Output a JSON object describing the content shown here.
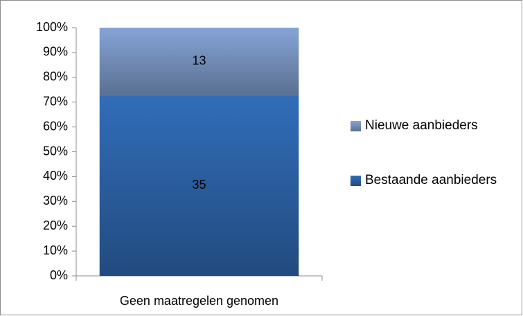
{
  "chart_data": {
    "type": "bar",
    "stacking": "percent",
    "categories": [
      "Geen maatregelen genomen"
    ],
    "series": [
      {
        "name": "Bestaande aanbieders",
        "color": "#2f68b0",
        "values": [
          35
        ]
      },
      {
        "name": "Nieuwe aanbieders",
        "color": "#7f9ccc",
        "values": [
          13
        ]
      }
    ],
    "ylim": [
      0,
      100
    ],
    "yticks": [
      {
        "value": 0,
        "label": "0%"
      },
      {
        "value": 10,
        "label": "10%"
      },
      {
        "value": 20,
        "label": "20%"
      },
      {
        "value": 30,
        "label": "30%"
      },
      {
        "value": 40,
        "label": "40%"
      },
      {
        "value": 50,
        "label": "50%"
      },
      {
        "value": 60,
        "label": "60%"
      },
      {
        "value": 70,
        "label": "70%"
      },
      {
        "value": 80,
        "label": "80%"
      },
      {
        "value": 90,
        "label": "90%"
      },
      {
        "value": 100,
        "label": "100%"
      }
    ],
    "legend": "right"
  }
}
